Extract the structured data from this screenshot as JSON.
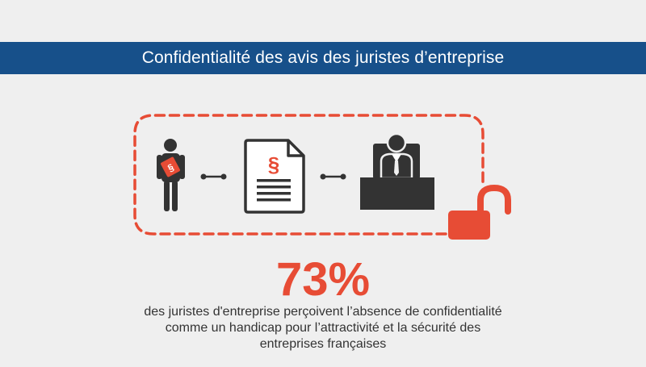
{
  "banner": {
    "title": "Confidentialité des avis des juristes d’entreprise"
  },
  "stat": {
    "value": "73",
    "unit": "%",
    "caption_lines": [
      "des juristes d'entreprise perçoivent l’absence de confidentialité",
      "comme un handicap pour l’attractivité et la sécurité des",
      "entreprises françaises"
    ]
  },
  "illustration": {
    "icons": [
      "lawyer-person-icon",
      "legal-document-icon",
      "executive-at-desk-icon",
      "open-padlock-icon"
    ],
    "section_symbol": "§",
    "colors": {
      "accent": "#e74c35",
      "dark": "#333333",
      "banner": "#17508a",
      "background": "#efefef"
    }
  }
}
